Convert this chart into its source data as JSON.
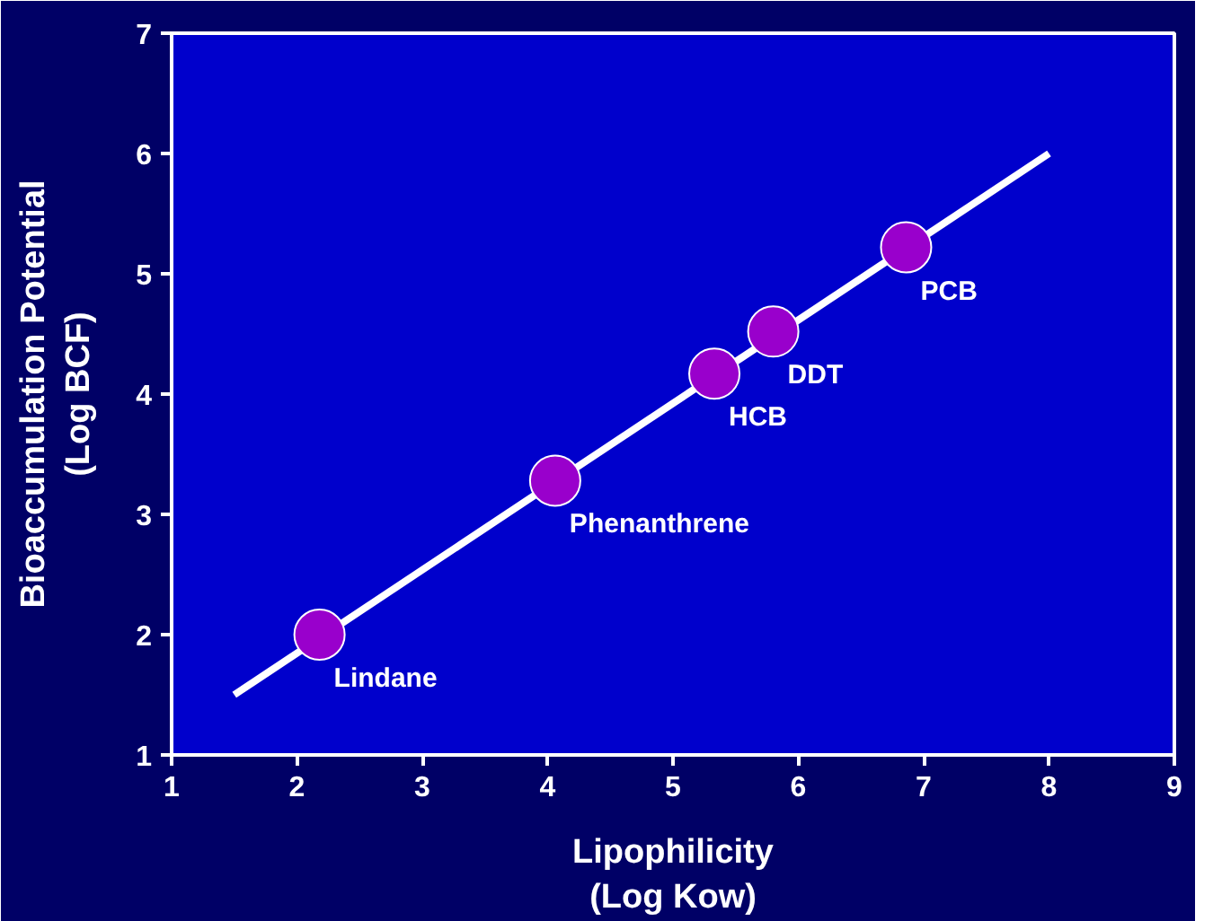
{
  "chart_data": {
    "type": "scatter",
    "xlabel": "Lipophilicity\n(Log Kow)",
    "ylabel": "Bioaccumulation Potential\n(Log BCF)",
    "x": [
      2.18,
      4.06,
      5.33,
      5.8,
      6.86
    ],
    "series": [
      {
        "type": "line",
        "color": "#ffffff",
        "x": [
          1.5,
          8
        ],
        "values": [
          1.5,
          6
        ],
        "line_style": "solid"
      },
      {
        "color": "#9900cc",
        "values": [
          2.0,
          3.28,
          4.17,
          4.52,
          5.22
        ],
        "marker": "circle"
      }
    ],
    "annotations": [
      {
        "text": "Lindane",
        "x": 2.18,
        "y": 2.0
      },
      {
        "text": "Phenanthrene",
        "x": 4.06,
        "y": 3.28
      },
      {
        "text": "HCB",
        "x": 5.33,
        "y": 4.17
      },
      {
        "text": "DDT",
        "x": 5.8,
        "y": 4.52
      },
      {
        "text": "PCB",
        "x": 6.86,
        "y": 5.22
      }
    ],
    "xlim": [
      1,
      9
    ],
    "ylim": [
      1,
      7
    ],
    "xticks": [
      1,
      2,
      3,
      4,
      5,
      6,
      7,
      8,
      9
    ],
    "yticks": [
      1,
      2,
      3,
      4,
      5,
      6,
      7
    ],
    "grid": false
  }
}
